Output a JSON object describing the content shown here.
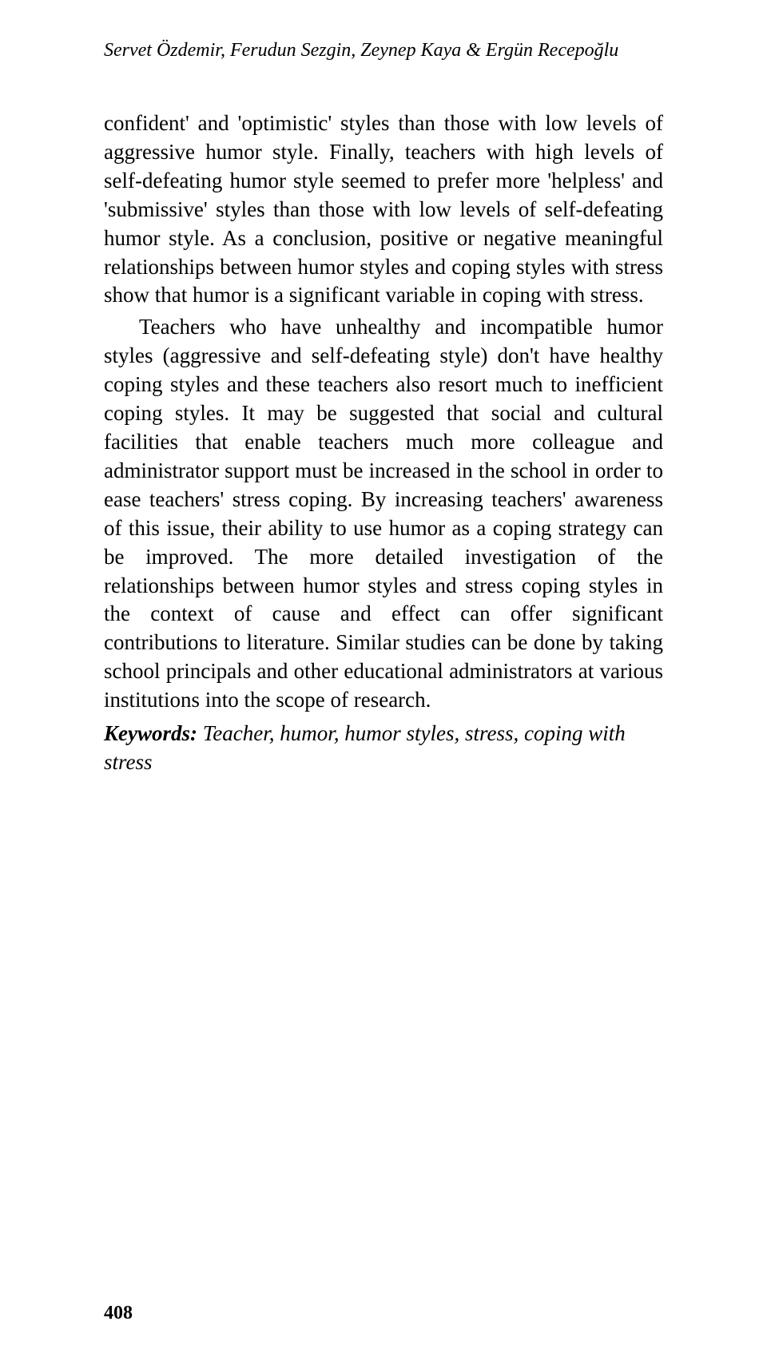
{
  "header": {
    "authors": "Servet Özdemir, Ferudun Sezgin, Zeynep Kaya & Ergün Recepoğlu"
  },
  "paragraphs": {
    "p1": "confident' and 'optimistic' styles than those with low levels of aggressive humor style. Finally, teachers with high levels of self-defeating humor style seemed to prefer more 'helpless' and 'submissive' styles than those with low levels of self-defeating humor style. As a conclusion, positive or negative meaningful relationships between humor styles and coping styles with stress show that humor is a significant variable in coping with stress.",
    "p2": "Teachers who have unhealthy and incompatible humor styles (aggressive and self-defeating style) don't have healthy coping styles and these teachers also resort much to inefficient coping styles. It may be suggested that social and cultural facilities that enable teachers much more colleague and administrator support must be increased in the school in order to ease teachers' stress coping. By increasing teachers' awareness of this issue, their ability to use humor as a coping strategy can be improved. The more detailed investigation of the relationships between humor styles and stress coping styles in the context of cause and effect can offer significant contributions to literature. Similar studies can be done by taking school principals and other educational administrators at various institutions into the scope of research."
  },
  "keywords": {
    "label": "Keywords:",
    "text": " Teacher, humor, humor styles, stress, coping with stress"
  },
  "pageNumber": "408"
}
